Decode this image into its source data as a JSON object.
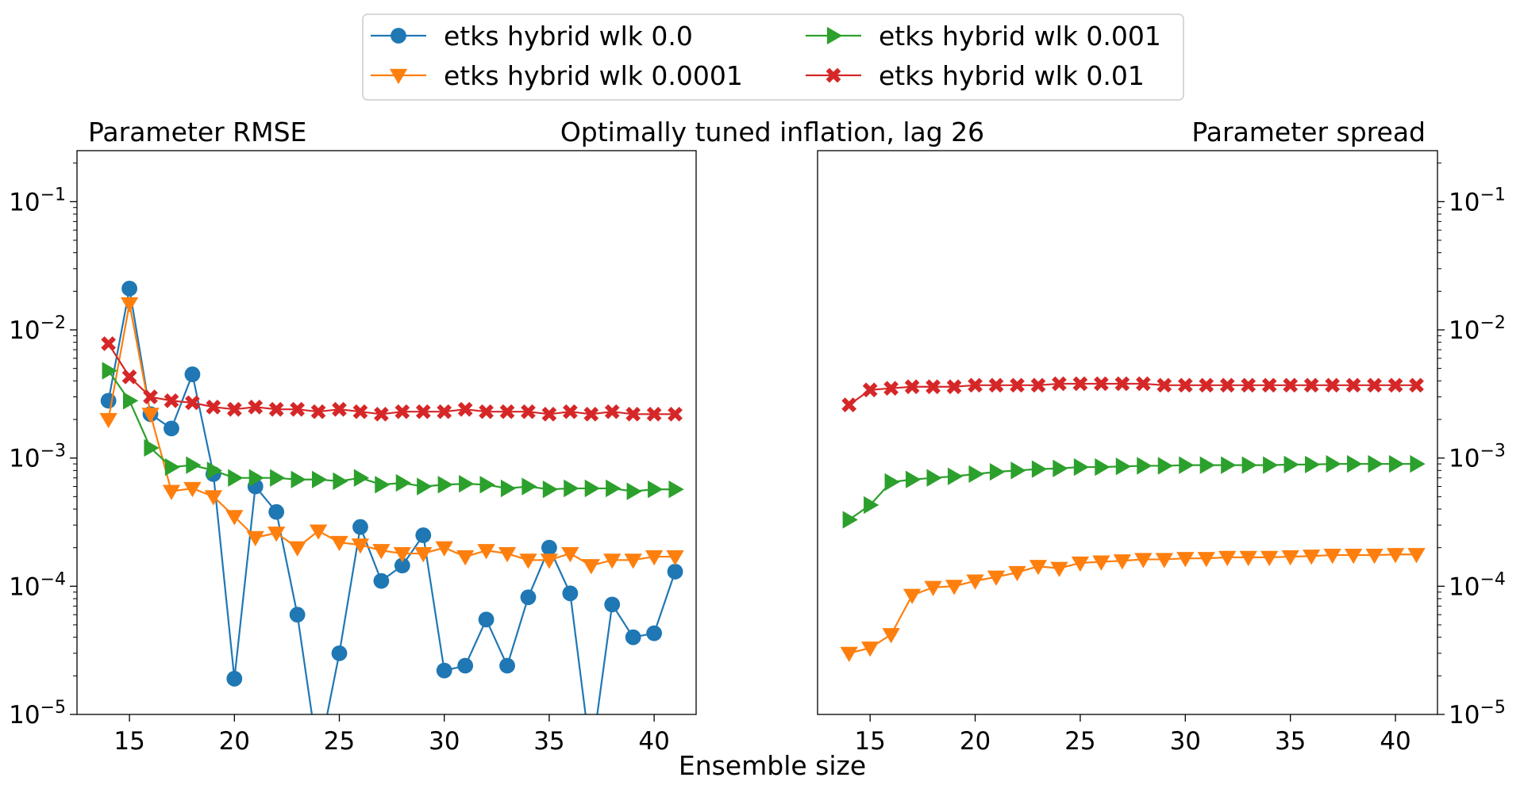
{
  "figure": {
    "center_title": "Optimally tuned inflation, lag 26",
    "xlabel": "Ensemble size"
  },
  "legend": [
    {
      "label": "etks hybrid wlk 0.0",
      "color": "#1f77b4",
      "marker": "circle"
    },
    {
      "label": "etks hybrid wlk 0.0001",
      "color": "#ff7f0e",
      "marker": "triangle-down"
    },
    {
      "label": "etks hybrid wlk 0.001",
      "color": "#2ca02c",
      "marker": "triangle-right"
    },
    {
      "label": "etks hybrid wlk 0.01",
      "color": "#d62728",
      "marker": "x"
    }
  ],
  "chart_data": [
    {
      "type": "line",
      "title": "Parameter RMSE",
      "xlabel": "Ensemble size",
      "ylabel": "",
      "yscale": "log",
      "xlim": [
        12.5,
        42.0
      ],
      "ylim": [
        1e-05,
        0.25
      ],
      "xticks": [
        15,
        20,
        25,
        30,
        35,
        40
      ],
      "yticks": [
        {
          "value": 1e-05,
          "base": "10",
          "exp": "−5"
        },
        {
          "value": 0.0001,
          "base": "10",
          "exp": "−4"
        },
        {
          "value": 0.001,
          "base": "10",
          "exp": "−3"
        },
        {
          "value": 0.01,
          "base": "10",
          "exp": "−2"
        },
        {
          "value": 0.1,
          "base": "10",
          "exp": "−1"
        }
      ],
      "grid": false,
      "x": [
        14,
        15,
        16,
        17,
        18,
        19,
        20,
        21,
        22,
        23,
        24,
        25,
        26,
        27,
        28,
        29,
        30,
        31,
        32,
        33,
        34,
        35,
        36,
        37,
        38,
        39,
        40,
        41
      ],
      "series": [
        {
          "name": "etks hybrid wlk 0.0",
          "values": [
            0.0028,
            0.021,
            0.0022,
            0.0017,
            0.0045,
            0.00075,
            1.9e-05,
            0.0006,
            0.00038,
            6e-05,
            4.5e-06,
            3e-05,
            0.00029,
            0.00011,
            0.000145,
            0.00025,
            2.2e-05,
            2.4e-05,
            5.5e-05,
            2.4e-05,
            8.2e-05,
            0.0002,
            8.8e-05,
            4.5e-06,
            7.2e-05,
            4e-05,
            4.3e-05,
            0.00013
          ]
        },
        {
          "name": "etks hybrid wlk 0.0001",
          "values": [
            0.002,
            0.016,
            0.0022,
            0.00055,
            0.00058,
            0.0005,
            0.00035,
            0.00024,
            0.00026,
            0.0002,
            0.00027,
            0.00022,
            0.00021,
            0.00019,
            0.00018,
            0.00018,
            0.0002,
            0.00017,
            0.00019,
            0.00018,
            0.00016,
            0.00016,
            0.00018,
            0.000145,
            0.00016,
            0.00016,
            0.00017,
            0.00017
          ]
        },
        {
          "name": "etks hybrid wlk 0.001",
          "values": [
            0.0048,
            0.0028,
            0.0012,
            0.00085,
            0.00088,
            0.0008,
            0.0007,
            0.0007,
            0.0007,
            0.00068,
            0.00068,
            0.00066,
            0.0007,
            0.00062,
            0.00064,
            0.0006,
            0.00062,
            0.00063,
            0.00062,
            0.00058,
            0.0006,
            0.00057,
            0.00058,
            0.00058,
            0.00058,
            0.00055,
            0.00057,
            0.00057
          ]
        },
        {
          "name": "etks hybrid wlk 0.01",
          "values": [
            0.0078,
            0.0043,
            0.003,
            0.0028,
            0.0027,
            0.0025,
            0.0024,
            0.0025,
            0.0024,
            0.0024,
            0.0023,
            0.0024,
            0.0023,
            0.0022,
            0.0023,
            0.0023,
            0.0023,
            0.0024,
            0.0023,
            0.0023,
            0.0023,
            0.0022,
            0.0023,
            0.0022,
            0.0023,
            0.0022,
            0.0022,
            0.0022
          ]
        }
      ]
    },
    {
      "type": "line",
      "title": "Parameter spread",
      "xlabel": "Ensemble size",
      "ylabel": "",
      "yscale": "log",
      "yaxis_side": "right",
      "xlim": [
        12.5,
        42.0
      ],
      "ylim": [
        1e-05,
        0.25
      ],
      "xticks": [
        15,
        20,
        25,
        30,
        35,
        40
      ],
      "yticks": [
        {
          "value": 1e-05,
          "base": "10",
          "exp": "−5"
        },
        {
          "value": 0.0001,
          "base": "10",
          "exp": "−4"
        },
        {
          "value": 0.001,
          "base": "10",
          "exp": "−3"
        },
        {
          "value": 0.01,
          "base": "10",
          "exp": "−2"
        },
        {
          "value": 0.1,
          "base": "10",
          "exp": "−1"
        }
      ],
      "grid": false,
      "x": [
        14,
        15,
        16,
        17,
        18,
        19,
        20,
        21,
        22,
        23,
        24,
        25,
        26,
        27,
        28,
        29,
        30,
        31,
        32,
        33,
        34,
        35,
        36,
        37,
        38,
        39,
        40,
        41
      ],
      "series": [
        {
          "name": "etks hybrid wlk 0.0001",
          "values": [
            3e-05,
            3.3e-05,
            4.2e-05,
            8.5e-05,
            9.8e-05,
            0.0001,
            0.00011,
            0.000118,
            0.000128,
            0.000143,
            0.000138,
            0.000152,
            0.000155,
            0.000158,
            0.000162,
            0.000162,
            0.000165,
            0.000165,
            0.000168,
            0.000168,
            0.000168,
            0.00017,
            0.000172,
            0.000175,
            0.000175,
            0.000175,
            0.000177,
            0.000177
          ]
        },
        {
          "name": "etks hybrid wlk 0.001",
          "values": [
            0.00033,
            0.00043,
            0.00065,
            0.00068,
            0.0007,
            0.00072,
            0.00075,
            0.00078,
            0.0008,
            0.00082,
            0.00083,
            0.00085,
            0.00085,
            0.00086,
            0.00087,
            0.00087,
            0.00088,
            0.00088,
            0.00088,
            0.00088,
            0.00088,
            0.00089,
            0.00089,
            0.0009,
            0.0009,
            0.0009,
            0.0009,
            0.0009
          ]
        },
        {
          "name": "etks hybrid wlk 0.01",
          "values": [
            0.0026,
            0.0034,
            0.0035,
            0.0036,
            0.0036,
            0.0036,
            0.0037,
            0.0037,
            0.0037,
            0.0037,
            0.0038,
            0.0038,
            0.0038,
            0.0038,
            0.0038,
            0.0037,
            0.0037,
            0.0037,
            0.0037,
            0.0037,
            0.0037,
            0.0037,
            0.0037,
            0.0037,
            0.0037,
            0.0037,
            0.0037,
            0.0037
          ]
        }
      ]
    }
  ]
}
